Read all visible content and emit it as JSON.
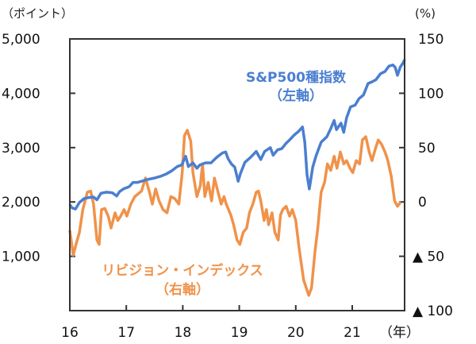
{
  "chart_data": {
    "type": "line",
    "title": "",
    "left_axis": {
      "unit": "（ポイント）",
      "range": [
        0,
        5000
      ],
      "ticks": [
        "5,000",
        "4,000",
        "3,000",
        "2,000",
        "1,000"
      ],
      "tick_values": [
        5000,
        4000,
        3000,
        2000,
        1000
      ]
    },
    "right_axis": {
      "unit": "(%)",
      "range": [
        -100,
        150
      ],
      "ticks": [
        "150",
        "100",
        "50",
        "0",
        "▲ 50",
        "▲ 100"
      ],
      "tick_values": [
        150,
        100,
        50,
        0,
        -50,
        -100
      ]
    },
    "x_axis": {
      "unit": "（年）",
      "range": [
        16,
        21.93
      ],
      "ticks": [
        "16",
        "17",
        "18",
        "19",
        "20",
        "21"
      ],
      "tick_values": [
        16,
        17,
        18,
        19,
        20,
        21
      ]
    },
    "grid": false,
    "series": [
      {
        "name": "S&P500種指数",
        "sublabel": "（左軸）",
        "axis": "left",
        "color": "#4a7fd0",
        "points": [
          [
            16.0,
            1950
          ],
          [
            16.04,
            1890
          ],
          [
            16.1,
            1870
          ],
          [
            16.17,
            1990
          ],
          [
            16.25,
            2060
          ],
          [
            16.33,
            2080
          ],
          [
            16.42,
            2090
          ],
          [
            16.48,
            2040
          ],
          [
            16.55,
            2160
          ],
          [
            16.65,
            2180
          ],
          [
            16.75,
            2170
          ],
          [
            16.83,
            2110
          ],
          [
            16.88,
            2190
          ],
          [
            16.95,
            2240
          ],
          [
            17.05,
            2280
          ],
          [
            17.12,
            2360
          ],
          [
            17.2,
            2360
          ],
          [
            17.3,
            2390
          ],
          [
            17.4,
            2420
          ],
          [
            17.5,
            2440
          ],
          [
            17.6,
            2470
          ],
          [
            17.7,
            2510
          ],
          [
            17.8,
            2570
          ],
          [
            17.9,
            2650
          ],
          [
            17.98,
            2680
          ],
          [
            18.05,
            2840
          ],
          [
            18.1,
            2650
          ],
          [
            18.18,
            2720
          ],
          [
            18.25,
            2620
          ],
          [
            18.3,
            2680
          ],
          [
            18.4,
            2720
          ],
          [
            18.5,
            2720
          ],
          [
            18.6,
            2820
          ],
          [
            18.7,
            2900
          ],
          [
            18.76,
            2920
          ],
          [
            18.8,
            2800
          ],
          [
            18.86,
            2700
          ],
          [
            18.92,
            2640
          ],
          [
            18.98,
            2380
          ],
          [
            19.02,
            2520
          ],
          [
            19.1,
            2730
          ],
          [
            19.2,
            2820
          ],
          [
            19.3,
            2930
          ],
          [
            19.38,
            2780
          ],
          [
            19.45,
            2930
          ],
          [
            19.55,
            3000
          ],
          [
            19.6,
            2860
          ],
          [
            19.68,
            2960
          ],
          [
            19.75,
            2980
          ],
          [
            19.83,
            3080
          ],
          [
            19.9,
            3150
          ],
          [
            19.97,
            3230
          ],
          [
            20.05,
            3300
          ],
          [
            20.12,
            3380
          ],
          [
            20.16,
            3100
          ],
          [
            20.2,
            2500
          ],
          [
            20.24,
            2240
          ],
          [
            20.3,
            2640
          ],
          [
            20.36,
            2850
          ],
          [
            20.45,
            3100
          ],
          [
            20.55,
            3200
          ],
          [
            20.62,
            3350
          ],
          [
            20.68,
            3500
          ],
          [
            20.72,
            3330
          ],
          [
            20.8,
            3450
          ],
          [
            20.85,
            3280
          ],
          [
            20.9,
            3550
          ],
          [
            20.97,
            3750
          ],
          [
            21.05,
            3780
          ],
          [
            21.12,
            3900
          ],
          [
            21.2,
            3970
          ],
          [
            21.28,
            4180
          ],
          [
            21.35,
            4210
          ],
          [
            21.42,
            4250
          ],
          [
            21.5,
            4360
          ],
          [
            21.58,
            4400
          ],
          [
            21.65,
            4500
          ],
          [
            21.72,
            4520
          ],
          [
            21.76,
            4480
          ],
          [
            21.8,
            4330
          ],
          [
            21.85,
            4480
          ],
          [
            21.9,
            4560
          ],
          [
            21.93,
            4620
          ]
        ]
      },
      {
        "name": "リビジョン・インデックス",
        "sublabel": "（右軸）",
        "axis": "right",
        "color": "#f0924a",
        "points": [
          [
            16.0,
            -26
          ],
          [
            16.06,
            -49
          ],
          [
            16.11,
            -39
          ],
          [
            16.17,
            -28
          ],
          [
            16.23,
            -7
          ],
          [
            16.31,
            9
          ],
          [
            16.37,
            10
          ],
          [
            16.42,
            -2
          ],
          [
            16.48,
            -35
          ],
          [
            16.52,
            -39
          ],
          [
            16.56,
            -7
          ],
          [
            16.62,
            -6
          ],
          [
            16.68,
            -13
          ],
          [
            16.73,
            -24
          ],
          [
            16.8,
            -10
          ],
          [
            16.85,
            -17
          ],
          [
            16.9,
            -13
          ],
          [
            16.96,
            -7
          ],
          [
            17.01,
            -13
          ],
          [
            17.08,
            -2
          ],
          [
            17.15,
            5
          ],
          [
            17.27,
            10
          ],
          [
            17.34,
            22
          ],
          [
            17.41,
            9
          ],
          [
            17.46,
            -2
          ],
          [
            17.52,
            12
          ],
          [
            17.58,
            1
          ],
          [
            17.65,
            -7
          ],
          [
            17.72,
            -10
          ],
          [
            17.79,
            5
          ],
          [
            17.86,
            3
          ],
          [
            17.93,
            -2
          ],
          [
            17.99,
            27
          ],
          [
            18.03,
            61
          ],
          [
            18.08,
            66
          ],
          [
            18.14,
            56
          ],
          [
            18.18,
            27
          ],
          [
            18.25,
            5
          ],
          [
            18.31,
            15
          ],
          [
            18.35,
            35
          ],
          [
            18.39,
            5
          ],
          [
            18.45,
            18
          ],
          [
            18.51,
            1
          ],
          [
            18.56,
            22
          ],
          [
            18.62,
            10
          ],
          [
            18.68,
            -2
          ],
          [
            18.73,
            5
          ],
          [
            18.77,
            -2
          ],
          [
            18.85,
            -12
          ],
          [
            18.9,
            -21
          ],
          [
            18.96,
            -35
          ],
          [
            19.01,
            -39
          ],
          [
            19.07,
            -28
          ],
          [
            19.13,
            -24
          ],
          [
            19.18,
            -10
          ],
          [
            19.24,
            -2
          ],
          [
            19.3,
            9
          ],
          [
            19.34,
            10
          ],
          [
            19.38,
            1
          ],
          [
            19.44,
            -17
          ],
          [
            19.48,
            -7
          ],
          [
            19.52,
            -21
          ],
          [
            19.58,
            -10
          ],
          [
            19.63,
            -28
          ],
          [
            19.69,
            -35
          ],
          [
            19.73,
            -12
          ],
          [
            19.77,
            -7
          ],
          [
            19.83,
            -4
          ],
          [
            19.89,
            -13
          ],
          [
            19.94,
            -7
          ],
          [
            20.0,
            -17
          ],
          [
            20.06,
            -43
          ],
          [
            20.14,
            -72
          ],
          [
            20.23,
            -86
          ],
          [
            20.28,
            -79
          ],
          [
            20.34,
            -46
          ],
          [
            20.39,
            -24
          ],
          [
            20.45,
            9
          ],
          [
            20.51,
            18
          ],
          [
            20.56,
            35
          ],
          [
            20.62,
            29
          ],
          [
            20.68,
            42
          ],
          [
            20.73,
            31
          ],
          [
            20.79,
            46
          ],
          [
            20.85,
            35
          ],
          [
            20.9,
            38
          ],
          [
            20.96,
            31
          ],
          [
            21.01,
            27
          ],
          [
            21.07,
            38
          ],
          [
            21.13,
            35
          ],
          [
            21.18,
            57
          ],
          [
            21.24,
            60
          ],
          [
            21.3,
            46
          ],
          [
            21.35,
            38
          ],
          [
            21.41,
            49
          ],
          [
            21.46,
            57
          ],
          [
            21.52,
            53
          ],
          [
            21.58,
            46
          ],
          [
            21.63,
            38
          ],
          [
            21.69,
            24
          ],
          [
            21.75,
            1
          ],
          [
            21.8,
            -4
          ],
          [
            21.86,
            0
          ]
        ]
      }
    ]
  }
}
